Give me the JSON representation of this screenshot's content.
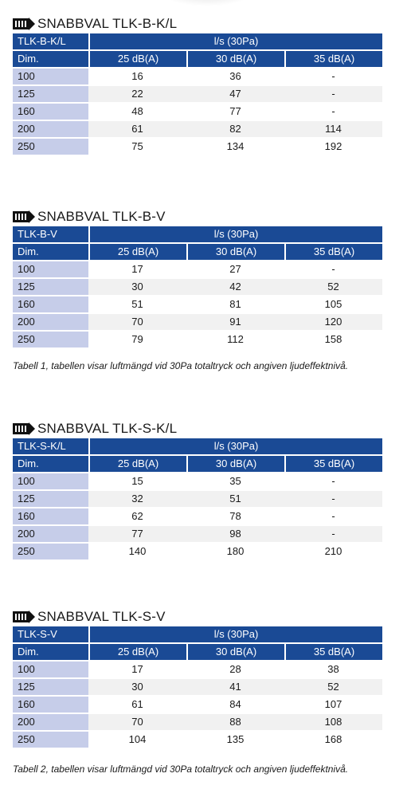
{
  "sections": [
    {
      "title": "SNABBVAL TLK-B-K/L",
      "model": "TLK-B-K/L",
      "flow_header": "l/s (30Pa)",
      "dim_label": "Dim.",
      "columns": [
        "25 dB(A)",
        "30 dB(A)",
        "35 dB(A)"
      ],
      "rows": [
        {
          "dim": "100",
          "v": [
            "16",
            "36",
            "-"
          ]
        },
        {
          "dim": "125",
          "v": [
            "22",
            "47",
            "-"
          ]
        },
        {
          "dim": "160",
          "v": [
            "48",
            "77",
            "-"
          ]
        },
        {
          "dim": "200",
          "v": [
            "61",
            "82",
            "114"
          ]
        },
        {
          "dim": "250",
          "v": [
            "75",
            "134",
            "192"
          ]
        }
      ]
    },
    {
      "title": "SNABBVAL TLK-B-V",
      "model": "TLK-B-V",
      "flow_header": "l/s (30Pa)",
      "dim_label": "Dim.",
      "columns": [
        "25 dB(A)",
        "30 dB(A)",
        "35 dB(A)"
      ],
      "rows": [
        {
          "dim": "100",
          "v": [
            "17",
            "27",
            "-"
          ]
        },
        {
          "dim": "125",
          "v": [
            "30",
            "42",
            "52"
          ]
        },
        {
          "dim": "160",
          "v": [
            "51",
            "81",
            "105"
          ]
        },
        {
          "dim": "200",
          "v": [
            "70",
            "91",
            "120"
          ]
        },
        {
          "dim": "250",
          "v": [
            "79",
            "112",
            "158"
          ]
        }
      ]
    },
    {
      "title": "SNABBVAL TLK-S-K/L",
      "model": "TLK-S-K/L",
      "flow_header": "l/s (30Pa)",
      "dim_label": "Dim.",
      "columns": [
        "25 dB(A)",
        "30 dB(A)",
        "35 dB(A)"
      ],
      "rows": [
        {
          "dim": "100",
          "v": [
            "15",
            "35",
            "-"
          ]
        },
        {
          "dim": "125",
          "v": [
            "32",
            "51",
            "-"
          ]
        },
        {
          "dim": "160",
          "v": [
            "62",
            "78",
            "-"
          ]
        },
        {
          "dim": "200",
          "v": [
            "77",
            "98",
            "-"
          ]
        },
        {
          "dim": "250",
          "v": [
            "140",
            "180",
            "210"
          ]
        }
      ]
    },
    {
      "title": "SNABBVAL TLK-S-V",
      "model": "TLK-S-V",
      "flow_header": "l/s (30Pa)",
      "dim_label": "Dim.",
      "columns": [
        "25 dB(A)",
        "30 dB(A)",
        "35 dB(A)"
      ],
      "rows": [
        {
          "dim": "100",
          "v": [
            "17",
            "28",
            "38"
          ]
        },
        {
          "dim": "125",
          "v": [
            "30",
            "41",
            "52"
          ]
        },
        {
          "dim": "160",
          "v": [
            "61",
            "84",
            "107"
          ]
        },
        {
          "dim": "200",
          "v": [
            "70",
            "88",
            "108"
          ]
        },
        {
          "dim": "250",
          "v": [
            "104",
            "135",
            "168"
          ]
        }
      ]
    }
  ],
  "captions": {
    "table1": "Tabell 1, tabellen visar luftmängd vid 30Pa totaltryck och angiven ljudeffektnivå.",
    "table2": "Tabell 2, tabellen visar luftmängd vid 30Pa totaltryck och angiven ljudeffektnivå."
  },
  "colors": {
    "header_blue": "#1a4a95",
    "dim_cell": "#c6cde9",
    "row_alt": "#f1f1f1"
  },
  "icons": {
    "section_logo": "duct-arrow-logo-icon"
  }
}
